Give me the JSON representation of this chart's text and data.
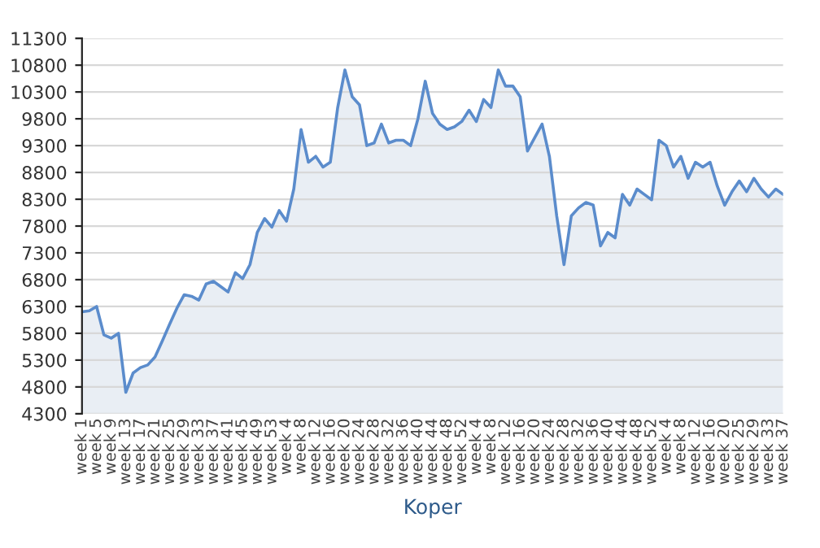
{
  "chart_data": {
    "type": "area",
    "xlabel": "Koper",
    "categories": [
      "week 1",
      null,
      "week 5",
      null,
      "week 9",
      null,
      "week 13",
      null,
      "week 17",
      null,
      "week 21",
      null,
      "week 25",
      null,
      "week 29",
      null,
      "week 33",
      null,
      "week 37",
      null,
      "week 41",
      null,
      "week 45",
      null,
      "week 49",
      null,
      "week 53",
      null,
      "week 4",
      null,
      "week 8",
      null,
      "week 12",
      null,
      "week 16",
      null,
      "week 20",
      null,
      "week 24",
      null,
      "week 28",
      null,
      "week 32",
      null,
      "week 36",
      null,
      "week 40",
      null,
      "week 44",
      null,
      "week 48",
      null,
      "week 52",
      null,
      "week 4",
      null,
      "week 8",
      null,
      "week 12",
      null,
      "week 16",
      null,
      "week 20",
      null,
      "week 24",
      null,
      "week 28",
      null,
      "week 32",
      null,
      "week 36",
      null,
      "week 40",
      null,
      "week 44",
      null,
      "week 48",
      null,
      "week 52",
      null,
      "week 4",
      null,
      "week 8",
      null,
      "week 12",
      null,
      "week 16",
      null,
      "week 20",
      null,
      "week 25",
      null,
      "week 29",
      null,
      "week 33",
      null,
      "week 37"
    ],
    "series": [
      {
        "color": "#5b8ccc",
        "values": [
          6200,
          6220,
          6300,
          5770,
          5710,
          5800,
          4700,
          5060,
          5160,
          5210,
          5360,
          5660,
          5970,
          6270,
          6520,
          6490,
          6420,
          6720,
          6770,
          6670,
          6570,
          6930,
          6820,
          7080,
          7680,
          7940,
          7780,
          8090,
          7890,
          8490,
          9600,
          8990,
          9100,
          8900,
          8990,
          10000,
          10710,
          10210,
          10060,
          9300,
          9350,
          9700,
          9350,
          9400,
          9400,
          9300,
          9800,
          10500,
          9900,
          9700,
          9600,
          9650,
          9750,
          9960,
          9750,
          10160,
          10010,
          10710,
          10410,
          10410,
          10210,
          9200,
          9450,
          9700,
          9100,
          7990,
          7080,
          7990,
          8140,
          8240,
          8190,
          7430,
          7680,
          7580,
          8390,
          8190,
          8490,
          8390,
          8290,
          9400,
          9300,
          8900,
          9100,
          8690,
          8990,
          8900,
          8990,
          8540,
          8190,
          8440,
          8640,
          8440,
          8690,
          8490,
          8340,
          8490,
          8390
        ]
      }
    ],
    "ylim": [
      4300,
      11300
    ],
    "yticks": [
      4300,
      4800,
      5300,
      5800,
      6300,
      6800,
      7300,
      7800,
      8300,
      8800,
      9300,
      9800,
      10300,
      10800,
      11300
    ],
    "grid": "y",
    "legend": false
  }
}
